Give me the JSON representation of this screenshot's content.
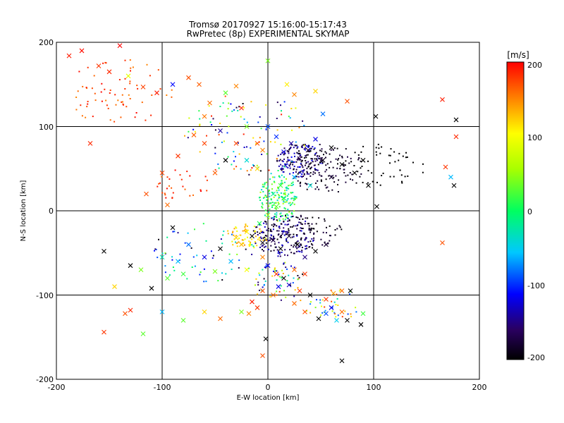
{
  "chart_data": {
    "type": "scatter",
    "title": "Tromsø 20170927 15:16:00-15:17:43",
    "subtitle": "RwPretec (8p) EXPERIMENTAL SKYMAP",
    "xlabel": "E-W location [km]",
    "ylabel": "N-S location [km]",
    "xlim": [
      -200,
      200
    ],
    "ylim": [
      -200,
      200
    ],
    "xticks": [
      "-200",
      "-100",
      "0",
      "100",
      "200"
    ],
    "yticks": [
      "-200",
      "-100",
      "0",
      "100",
      "200"
    ],
    "grid": true,
    "colorbar": {
      "label": "[m/s]",
      "range": [
        -200,
        200
      ],
      "ticks": [
        "-200",
        "-100",
        "0",
        "100",
        "200"
      ]
    },
    "crosses": [
      {
        "x": -188,
        "y": 184,
        "v": 190
      },
      {
        "x": -176,
        "y": 190,
        "v": 195
      },
      {
        "x": -160,
        "y": 172,
        "v": 180
      },
      {
        "x": -140,
        "y": 196,
        "v": 200
      },
      {
        "x": -132,
        "y": 160,
        "v": 90
      },
      {
        "x": -150,
        "y": 165,
        "v": 185
      },
      {
        "x": -118,
        "y": 147,
        "v": 175
      },
      {
        "x": -105,
        "y": 140,
        "v": 190
      },
      {
        "x": -75,
        "y": 158,
        "v": 170
      },
      {
        "x": -65,
        "y": 150,
        "v": 165
      },
      {
        "x": -55,
        "y": 128,
        "v": 160
      },
      {
        "x": -40,
        "y": 140,
        "v": 30
      },
      {
        "x": -30,
        "y": 148,
        "v": 150
      },
      {
        "x": -25,
        "y": 122,
        "v": 185
      },
      {
        "x": -90,
        "y": 150,
        "v": -110
      },
      {
        "x": 0,
        "y": 178,
        "v": 40
      },
      {
        "x": 18,
        "y": 150,
        "v": 110
      },
      {
        "x": 25,
        "y": 138,
        "v": 150
      },
      {
        "x": 45,
        "y": 142,
        "v": 120
      },
      {
        "x": 75,
        "y": 130,
        "v": 170
      },
      {
        "x": 52,
        "y": 115,
        "v": -80
      },
      {
        "x": 102,
        "y": 112,
        "v": -200
      },
      {
        "x": 165,
        "y": 132,
        "v": 190
      },
      {
        "x": 178,
        "y": 108,
        "v": -200
      },
      {
        "x": 178,
        "y": 88,
        "v": 185
      },
      {
        "x": 168,
        "y": 52,
        "v": 180
      },
      {
        "x": 173,
        "y": 40,
        "v": -60
      },
      {
        "x": 176,
        "y": 30,
        "v": -200
      },
      {
        "x": 103,
        "y": 5,
        "v": -200
      },
      {
        "x": 165,
        "y": -38,
        "v": 170
      },
      {
        "x": -168,
        "y": 80,
        "v": 185
      },
      {
        "x": -115,
        "y": 20,
        "v": 170
      },
      {
        "x": -100,
        "y": 45,
        "v": 175
      },
      {
        "x": -95,
        "y": 7,
        "v": 160
      },
      {
        "x": -85,
        "y": 65,
        "v": 180
      },
      {
        "x": -70,
        "y": 90,
        "v": 165
      },
      {
        "x": -60,
        "y": 112,
        "v": 155
      },
      {
        "x": -45,
        "y": 95,
        "v": -140
      },
      {
        "x": -30,
        "y": 80,
        "v": 175
      },
      {
        "x": -20,
        "y": 60,
        "v": -40
      },
      {
        "x": -10,
        "y": 50,
        "v": 120
      },
      {
        "x": -5,
        "y": 72,
        "v": 150
      },
      {
        "x": 8,
        "y": 88,
        "v": -100
      },
      {
        "x": 15,
        "y": 70,
        "v": -120
      },
      {
        "x": 22,
        "y": 80,
        "v": -140
      },
      {
        "x": 30,
        "y": 62,
        "v": -160
      },
      {
        "x": 38,
        "y": 72,
        "v": -180
      },
      {
        "x": 45,
        "y": 85,
        "v": -120
      },
      {
        "x": 52,
        "y": 60,
        "v": -190
      },
      {
        "x": 60,
        "y": 75,
        "v": -200
      },
      {
        "x": 70,
        "y": 55,
        "v": -200
      },
      {
        "x": 82,
        "y": 45,
        "v": -200
      },
      {
        "x": 90,
        "y": 60,
        "v": -200
      },
      {
        "x": 95,
        "y": 30,
        "v": -200
      },
      {
        "x": 60,
        "y": 40,
        "v": -180
      },
      {
        "x": 40,
        "y": 30,
        "v": -40
      },
      {
        "x": 25,
        "y": 40,
        "v": -60
      },
      {
        "x": 12,
        "y": 30,
        "v": 20
      },
      {
        "x": 5,
        "y": 20,
        "v": -20
      },
      {
        "x": 15,
        "y": 15,
        "v": 0
      },
      {
        "x": 8,
        "y": 5,
        "v": 30
      },
      {
        "x": 0,
        "y": -5,
        "v": 50
      },
      {
        "x": -8,
        "y": -15,
        "v": 10
      },
      {
        "x": -20,
        "y": -25,
        "v": 110
      },
      {
        "x": -30,
        "y": -32,
        "v": 120
      },
      {
        "x": -25,
        "y": -40,
        "v": 130
      },
      {
        "x": -15,
        "y": -30,
        "v": -200
      },
      {
        "x": -5,
        "y": -38,
        "v": -190
      },
      {
        "x": 5,
        "y": -35,
        "v": -170
      },
      {
        "x": 12,
        "y": -45,
        "v": -200
      },
      {
        "x": 20,
        "y": -30,
        "v": -180
      },
      {
        "x": 28,
        "y": -40,
        "v": -200
      },
      {
        "x": 35,
        "y": -55,
        "v": -150
      },
      {
        "x": 45,
        "y": -48,
        "v": -200
      },
      {
        "x": 55,
        "y": -40,
        "v": -180
      },
      {
        "x": -45,
        "y": -45,
        "v": -200
      },
      {
        "x": -60,
        "y": -55,
        "v": -120
      },
      {
        "x": -75,
        "y": -40,
        "v": -80
      },
      {
        "x": -90,
        "y": -20,
        "v": -200
      },
      {
        "x": -85,
        "y": -60,
        "v": -60
      },
      {
        "x": -100,
        "y": -55,
        "v": -30
      },
      {
        "x": -120,
        "y": -70,
        "v": 40
      },
      {
        "x": -130,
        "y": -65,
        "v": -200
      },
      {
        "x": -155,
        "y": -48,
        "v": -200
      },
      {
        "x": -110,
        "y": -92,
        "v": -200
      },
      {
        "x": -95,
        "y": -80,
        "v": 30
      },
      {
        "x": -80,
        "y": -75,
        "v": 20
      },
      {
        "x": -50,
        "y": -72,
        "v": 40
      },
      {
        "x": -35,
        "y": -60,
        "v": -60
      },
      {
        "x": -20,
        "y": -70,
        "v": 100
      },
      {
        "x": -5,
        "y": -55,
        "v": 150
      },
      {
        "x": 0,
        "y": -65,
        "v": -120
      },
      {
        "x": 8,
        "y": -75,
        "v": 180
      },
      {
        "x": 15,
        "y": -80,
        "v": -200
      },
      {
        "x": 25,
        "y": -70,
        "v": 160
      },
      {
        "x": 35,
        "y": -75,
        "v": 180
      },
      {
        "x": 10,
        "y": -90,
        "v": -120
      },
      {
        "x": 20,
        "y": -88,
        "v": -130
      },
      {
        "x": 5,
        "y": -100,
        "v": 160
      },
      {
        "x": -5,
        "y": -95,
        "v": 170
      },
      {
        "x": 30,
        "y": -95,
        "v": 180
      },
      {
        "x": 40,
        "y": -100,
        "v": -200
      },
      {
        "x": 55,
        "y": -105,
        "v": 180
      },
      {
        "x": 62,
        "y": -98,
        "v": 140
      },
      {
        "x": 70,
        "y": -95,
        "v": 160
      },
      {
        "x": 78,
        "y": -95,
        "v": -200
      },
      {
        "x": 60,
        "y": -115,
        "v": -120
      },
      {
        "x": 70,
        "y": -120,
        "v": 160
      },
      {
        "x": 75,
        "y": -130,
        "v": -200
      },
      {
        "x": 90,
        "y": -122,
        "v": 20
      },
      {
        "x": 88,
        "y": -135,
        "v": -200
      },
      {
        "x": 65,
        "y": -130,
        "v": -50
      },
      {
        "x": 55,
        "y": -122,
        "v": -90
      },
      {
        "x": 48,
        "y": -128,
        "v": -200
      },
      {
        "x": 70,
        "y": -178,
        "v": -200
      },
      {
        "x": -2,
        "y": -152,
        "v": -200
      },
      {
        "x": -5,
        "y": -172,
        "v": 170
      },
      {
        "x": -18,
        "y": -122,
        "v": 150
      },
      {
        "x": -15,
        "y": -108,
        "v": 190
      },
      {
        "x": -10,
        "y": -115,
        "v": 180
      },
      {
        "x": -25,
        "y": -120,
        "v": 40
      },
      {
        "x": -45,
        "y": -128,
        "v": 160
      },
      {
        "x": -60,
        "y": -120,
        "v": 120
      },
      {
        "x": -80,
        "y": -130,
        "v": 30
      },
      {
        "x": -100,
        "y": -120,
        "v": -60
      },
      {
        "x": -130,
        "y": -118,
        "v": 185
      },
      {
        "x": -145,
        "y": -90,
        "v": 120
      },
      {
        "x": -155,
        "y": -144,
        "v": 180
      },
      {
        "x": -118,
        "y": -146,
        "v": 30
      },
      {
        "x": -135,
        "y": -122,
        "v": 170
      },
      {
        "x": 25,
        "y": -110,
        "v": 160
      },
      {
        "x": 35,
        "y": -120,
        "v": 170
      },
      {
        "x": -40,
        "y": 60,
        "v": -200
      },
      {
        "x": -60,
        "y": 80,
        "v": 175
      },
      {
        "x": -50,
        "y": 45,
        "v": 165
      },
      {
        "x": -10,
        "y": 80,
        "v": 170
      },
      {
        "x": 0,
        "y": 100,
        "v": -90
      },
      {
        "x": -20,
        "y": 100,
        "v": 40
      }
    ],
    "dots": [
      {
        "cx": 30,
        "cy": 60,
        "rx": 22,
        "ry": 20,
        "n": 160,
        "vmin": -200,
        "vmax": -110
      },
      {
        "cx": 55,
        "cy": 50,
        "rx": 35,
        "ry": 30,
        "n": 130,
        "vmin": -200,
        "vmax": -170
      },
      {
        "cx": 10,
        "cy": 15,
        "rx": 18,
        "ry": 30,
        "n": 170,
        "vmin": -50,
        "vmax": 60
      },
      {
        "cx": 15,
        "cy": -30,
        "rx": 30,
        "ry": 25,
        "n": 170,
        "vmin": -200,
        "vmax": -120
      },
      {
        "cx": -20,
        "cy": -30,
        "rx": 20,
        "ry": 15,
        "n": 60,
        "vmin": 90,
        "vmax": 150
      },
      {
        "cx": 35,
        "cy": -25,
        "rx": 35,
        "ry": 20,
        "n": 90,
        "vmin": -200,
        "vmax": -170
      },
      {
        "cx": -20,
        "cy": 90,
        "rx": 60,
        "ry": 50,
        "n": 110,
        "vmin": -200,
        "vmax": 200
      },
      {
        "cx": -140,
        "cy": 140,
        "rx": 50,
        "ry": 40,
        "n": 70,
        "vmin": 150,
        "vmax": 200
      },
      {
        "cx": 10,
        "cy": -85,
        "rx": 25,
        "ry": 25,
        "n": 60,
        "vmin": -200,
        "vmax": 180
      },
      {
        "cx": -60,
        "cy": -50,
        "rx": 50,
        "ry": 35,
        "n": 60,
        "vmin": -200,
        "vmax": 60
      },
      {
        "cx": 110,
        "cy": 55,
        "rx": 40,
        "ry": 25,
        "n": 50,
        "vmin": -200,
        "vmax": -200
      },
      {
        "cx": 60,
        "cy": -110,
        "rx": 30,
        "ry": 20,
        "n": 40,
        "vmin": -120,
        "vmax": 180
      },
      {
        "cx": -80,
        "cy": 30,
        "rx": 25,
        "ry": 20,
        "n": 30,
        "vmin": 160,
        "vmax": 200
      }
    ]
  }
}
